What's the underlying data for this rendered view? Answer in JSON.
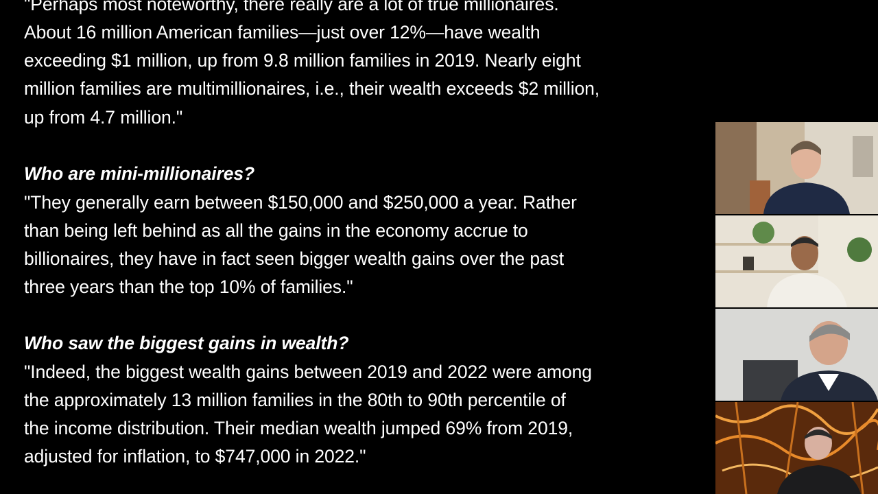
{
  "document": {
    "quote1": [
      "\"Perhaps most noteworthy, there really are a lot of true millionaires.",
      "About 16 million American families—just over 12%—have wealth",
      "exceeding $1 million, up from 9.8 million families in 2019. Nearly eight",
      "million families are multimillionaires, i.e., their wealth exceeds $2 million,",
      "up from 4.7 million.\""
    ],
    "heading2": "Who are mini-millionaires?",
    "quote2": [
      "\"They generally earn between $150,000 and $250,000 a year.  Rather",
      "than being left behind as all the gains in the economy accrue to",
      "billionaires, they have in fact seen bigger wealth gains over the past",
      "three years than the top 10% of families.\""
    ],
    "heading3": "Who saw the biggest gains in wealth?",
    "quote3": [
      "\"Indeed, the biggest wealth gains between 2019 and 2022 were among",
      "the approximately 13 million families in the 80th to 90th percentile of",
      "the income distribution. Their median wealth jumped 69% from 2019,",
      "adjusted for inflation, to $747,000 in 2022.\""
    ]
  },
  "participants": [
    {
      "name": "participant-1",
      "background": "#c9b9a0"
    },
    {
      "name": "participant-2",
      "background": "#e8e2d6"
    },
    {
      "name": "participant-3",
      "background": "#d9d9d6"
    },
    {
      "name": "participant-4",
      "background": "#5a2a0c"
    }
  ]
}
